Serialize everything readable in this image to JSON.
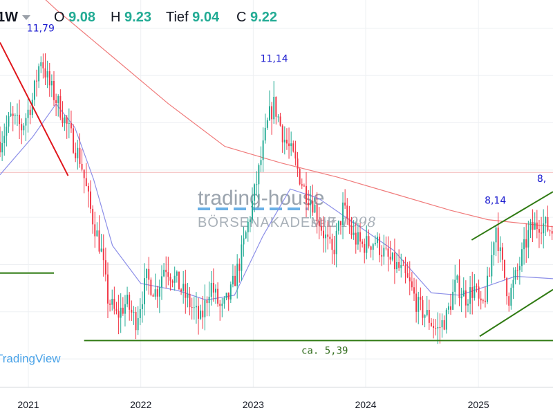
{
  "header": {
    "interval": "1W",
    "open_label": "O",
    "open_value": "9.08",
    "high_label": "H",
    "high_value": "9.23",
    "low_label": "Tief",
    "low_value": "9.04",
    "close_label": "C",
    "close_value": "9.22"
  },
  "watermark": {
    "brand": "trading-house",
    "subtitle": "BÖRSENAKADEMIE",
    "since": "seit 1998",
    "tradingview": "TradingView"
  },
  "colors": {
    "up": "#22ab94",
    "down": "#f23645",
    "ma_short": "#8c8fe8",
    "ma_long": "#f07b7b",
    "trend": "#2f7a12",
    "downtrend": "#e0161c",
    "annotation": "#1a1acf"
  },
  "chart_data": {
    "type": "candlestick",
    "interval": "weekly",
    "x_range": [
      "2020-10-01",
      "2025-08-31"
    ],
    "ylim": [
      4.4,
      12.6
    ],
    "x_ticks": [
      {
        "label": "2021",
        "date": "2021-01-01"
      },
      {
        "label": "2022",
        "date": "2022-01-01"
      },
      {
        "label": "2023",
        "date": "2023-01-01"
      },
      {
        "label": "2024",
        "date": "2024-01-01"
      },
      {
        "label": "2025",
        "date": "2025-01-01"
      }
    ],
    "price_path": [
      [
        "2020-10-01",
        9.6
      ],
      [
        "2020-11-05",
        10.1
      ],
      [
        "2020-12-10",
        9.9
      ],
      [
        "2021-01-15",
        10.5
      ],
      [
        "2021-02-10",
        11.4
      ],
      [
        "2021-03-10",
        10.8
      ],
      [
        "2021-04-15",
        10.3
      ],
      [
        "2021-05-20",
        9.7
      ],
      [
        "2021-06-20",
        9.2
      ],
      [
        "2021-07-20",
        8.2
      ],
      [
        "2021-08-25",
        7.3
      ],
      [
        "2021-09-15",
        6.3
      ],
      [
        "2021-10-15",
        5.9
      ],
      [
        "2021-11-15",
        6.2
      ],
      [
        "2021-12-15",
        5.8
      ],
      [
        "2022-01-20",
        6.7
      ],
      [
        "2022-02-20",
        6.4
      ],
      [
        "2022-03-20",
        7.0
      ],
      [
        "2022-05-01",
        6.6
      ],
      [
        "2022-06-15",
        6.1
      ],
      [
        "2022-07-15",
        5.8
      ],
      [
        "2022-08-15",
        6.6
      ],
      [
        "2022-09-20",
        6.0
      ],
      [
        "2022-10-20",
        6.4
      ],
      [
        "2022-11-20",
        7.1
      ],
      [
        "2022-12-20",
        8.0
      ],
      [
        "2023-01-20",
        9.0
      ],
      [
        "2023-02-20",
        10.1
      ],
      [
        "2023-03-10",
        10.4
      ],
      [
        "2023-04-10",
        9.7
      ],
      [
        "2023-05-15",
        9.2
      ],
      [
        "2023-06-15",
        8.6
      ],
      [
        "2023-07-15",
        8.3
      ],
      [
        "2023-08-15",
        7.7
      ],
      [
        "2023-09-15",
        7.2
      ],
      [
        "2023-10-20",
        8.2
      ],
      [
        "2023-11-20",
        7.6
      ],
      [
        "2023-12-20",
        7.4
      ],
      [
        "2024-02-01",
        7.5
      ],
      [
        "2024-03-15",
        7.1
      ],
      [
        "2024-04-20",
        6.9
      ],
      [
        "2024-05-20",
        6.6
      ],
      [
        "2024-06-20",
        6.1
      ],
      [
        "2024-07-20",
        5.9
      ],
      [
        "2024-08-20",
        5.6
      ],
      [
        "2024-09-20",
        5.9
      ],
      [
        "2024-10-20",
        6.6
      ],
      [
        "2024-11-20",
        6.3
      ],
      [
        "2024-12-20",
        6.5
      ],
      [
        "2025-01-10",
        6.0
      ],
      [
        "2025-02-05",
        6.7
      ],
      [
        "2025-02-25",
        7.9
      ],
      [
        "2025-03-15",
        7.1
      ],
      [
        "2025-04-10",
        6.3
      ],
      [
        "2025-05-10",
        6.9
      ],
      [
        "2025-06-15",
        7.7
      ],
      [
        "2025-07-20",
        7.9
      ],
      [
        "2025-08-31",
        7.7
      ]
    ],
    "ma_short": [
      [
        "2020-10-01",
        8.9
      ],
      [
        "2021-01-15",
        9.7
      ],
      [
        "2021-04-01",
        10.4
      ],
      [
        "2021-06-01",
        9.9
      ],
      [
        "2021-08-01",
        8.8
      ],
      [
        "2021-10-01",
        7.4
      ],
      [
        "2022-01-01",
        6.6
      ],
      [
        "2022-05-01",
        6.45
      ],
      [
        "2022-08-01",
        6.25
      ],
      [
        "2022-11-01",
        6.35
      ],
      [
        "2023-02-01",
        7.6
      ],
      [
        "2023-05-01",
        8.6
      ],
      [
        "2023-08-01",
        8.4
      ],
      [
        "2023-12-01",
        7.85
      ],
      [
        "2024-04-01",
        7.3
      ],
      [
        "2024-08-01",
        6.4
      ],
      [
        "2024-11-01",
        6.35
      ],
      [
        "2025-02-01",
        6.55
      ],
      [
        "2025-05-01",
        6.75
      ],
      [
        "2025-08-31",
        6.7
      ]
    ],
    "ma_long": [
      [
        "2020-10-01",
        13.5
      ],
      [
        "2021-04-01",
        12.4
      ],
      [
        "2021-10-01",
        11.4
      ],
      [
        "2022-04-01",
        10.4
      ],
      [
        "2022-10-01",
        9.5
      ],
      [
        "2023-04-01",
        9.15
      ],
      [
        "2023-10-01",
        8.85
      ],
      [
        "2024-04-01",
        8.5
      ],
      [
        "2024-10-01",
        8.15
      ],
      [
        "2025-02-01",
        7.95
      ],
      [
        "2025-08-31",
        7.8
      ]
    ],
    "ma_long_flat_level": 8.95,
    "trendlines": [
      {
        "name": "support",
        "points": [
          [
            "2021-07-01",
            5.39
          ],
          [
            "2025-08-31",
            5.39
          ]
        ],
        "label": "ca. 5,39"
      },
      {
        "name": "support-left",
        "points": [
          [
            "2020-10-01",
            6.82
          ],
          [
            "2021-03-25",
            6.82
          ]
        ]
      },
      {
        "name": "downtrend",
        "points": [
          [
            "2020-10-01",
            11.7
          ],
          [
            "2021-05-10",
            8.88
          ]
        ]
      },
      {
        "name": "channel-top",
        "points": [
          [
            "2024-12-10",
            7.52
          ],
          [
            "2025-08-31",
            8.54
          ]
        ]
      },
      {
        "name": "channel-bottom",
        "points": [
          [
            "2025-01-05",
            5.48
          ],
          [
            "2025-08-31",
            6.47
          ]
        ]
      }
    ],
    "annotations": [
      {
        "text": "11,79",
        "date": "2021-02-10",
        "value": 11.79
      },
      {
        "text": "11,14",
        "date": "2023-03-10",
        "value": 11.14
      },
      {
        "text": "8,14",
        "date": "2025-02-25",
        "value": 8.14
      },
      {
        "text": "8,",
        "date": "2025-07-25",
        "value": 8.6
      }
    ]
  }
}
